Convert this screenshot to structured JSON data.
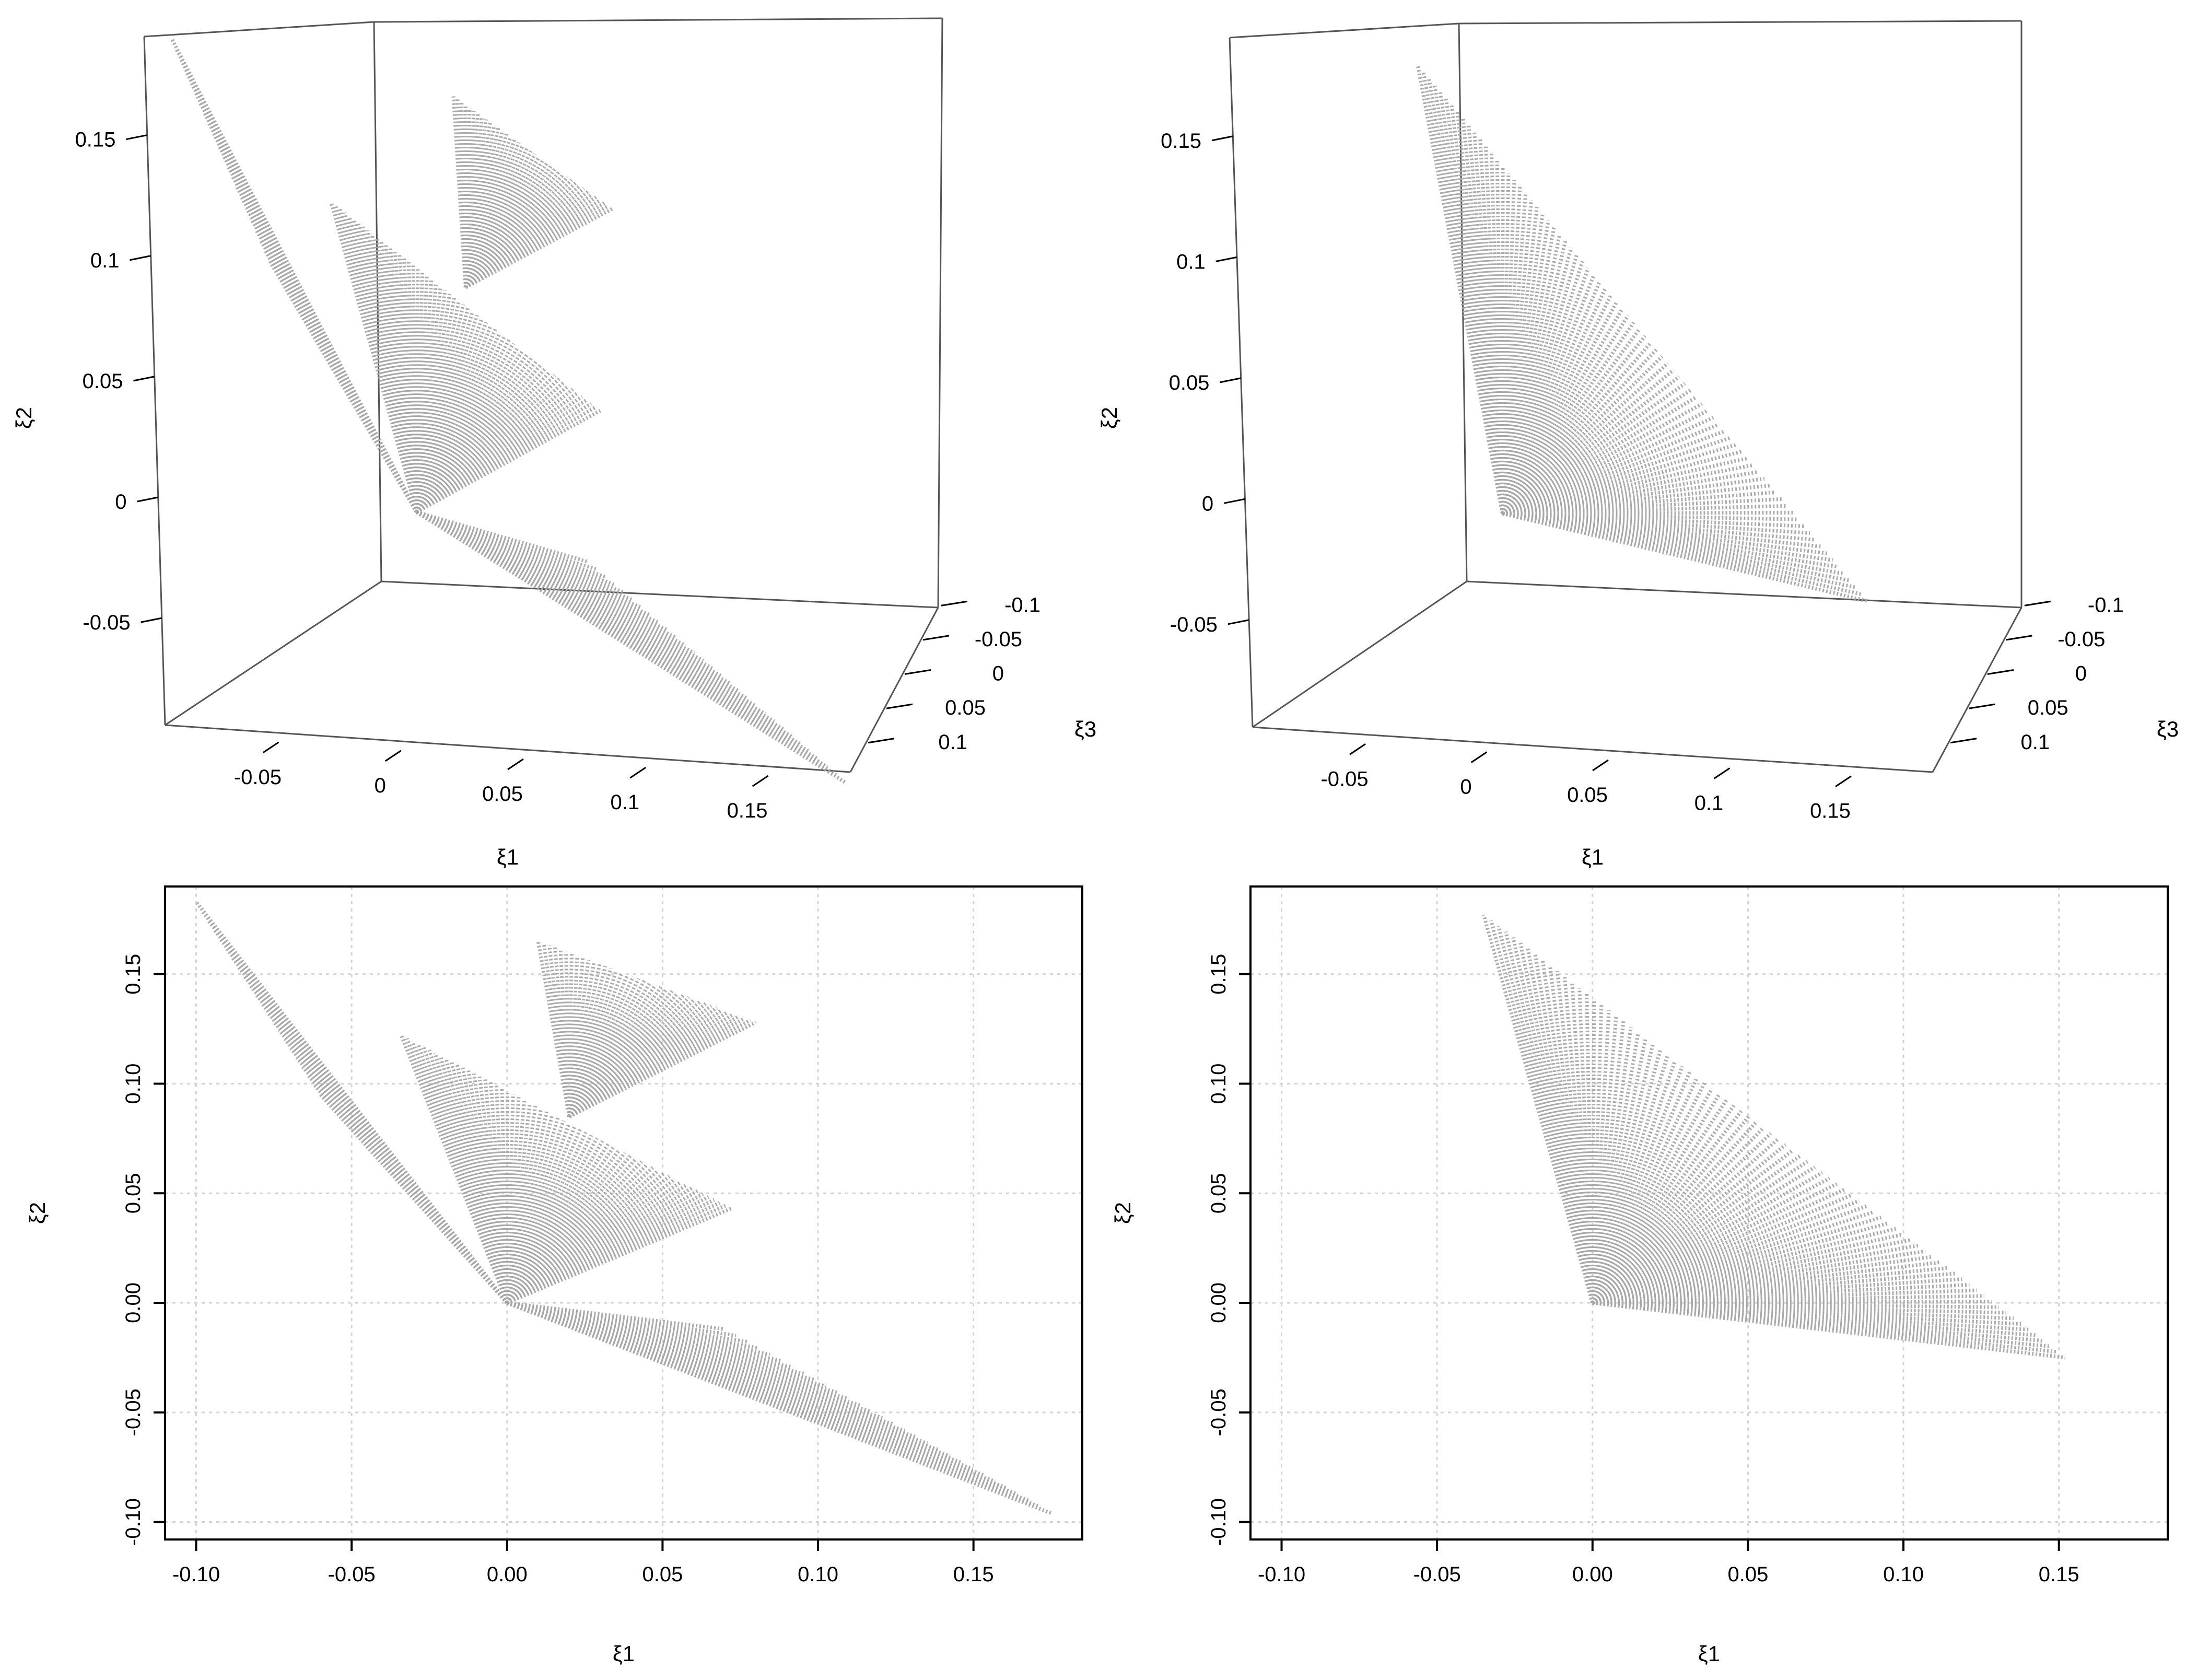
{
  "figure": {
    "background": "#ffffff",
    "fan_color": "#a6a6a6",
    "grid_color": "#d3d3d3",
    "axis_color": "#000000",
    "box_color": "#555555"
  },
  "chart_data": [
    {
      "type": "scatter",
      "panel": "top-left",
      "projection": "3d-perspective",
      "title": "",
      "xlabel": "ξ1",
      "ylabel": "ξ2",
      "zlabel": "ξ3",
      "xlim": [
        -0.09,
        0.19
      ],
      "ylim": [
        -0.09,
        0.18
      ],
      "zlim": [
        -0.12,
        0.12
      ],
      "xticks": [
        -0.05,
        0,
        0.05,
        0.1,
        0.15
      ],
      "xtick_labels": [
        "-0.05",
        "0",
        "0.05",
        "0.1",
        "0.15"
      ],
      "yticks": [
        -0.05,
        0,
        0.05,
        0.1,
        0.15
      ],
      "ytick_labels": [
        "-0.05",
        "0",
        "0.05",
        "0.1",
        "0.15"
      ],
      "zticks": [
        -0.1,
        -0.05,
        0,
        0.05,
        0.1
      ],
      "ztick_labels": [
        "-0.1",
        "-0.05",
        "0",
        "0.05",
        "0.1"
      ],
      "grid": false,
      "color": "#a6a6a6",
      "fans": [
        {
          "name": "",
          "origin": [
            0,
            0
          ],
          "rays": 22,
          "end_x": [
            -0.1,
            -0.06
          ],
          "end_y": [
            0.18,
            0.095
          ]
        },
        {
          "name": "",
          "origin": [
            0,
            0
          ],
          "rays": 60,
          "end_x": [
            -0.035,
            0.075
          ],
          "end_y": [
            0.12,
            0.045
          ]
        },
        {
          "name": "",
          "origin": [
            0.02,
            0.09
          ],
          "rays": 40,
          "end_x": [
            0.015,
            0.08
          ],
          "end_y": [
            0.165,
            0.125
          ]
        },
        {
          "name": "",
          "origin": [
            0,
            0
          ],
          "rays": 30,
          "end_x": [
            0.07,
            0.175
          ],
          "end_y": [
            -0.015,
            -0.095
          ]
        }
      ]
    },
    {
      "type": "scatter",
      "panel": "top-right",
      "projection": "3d-perspective",
      "title": "",
      "xlabel": "ξ1",
      "ylabel": "ξ2",
      "zlabel": "ξ3",
      "xlim": [
        -0.09,
        0.19
      ],
      "ylim": [
        -0.09,
        0.18
      ],
      "zlim": [
        -0.12,
        0.12
      ],
      "xticks": [
        -0.05,
        0,
        0.05,
        0.1,
        0.15
      ],
      "xtick_labels": [
        "-0.05",
        "0",
        "0.05",
        "0.1",
        "0.15"
      ],
      "yticks": [
        -0.05,
        0,
        0.05,
        0.1,
        0.15
      ],
      "ytick_labels": [
        "-0.05",
        "0",
        "0.05",
        "0.1",
        "0.15"
      ],
      "zticks": [
        -0.1,
        -0.05,
        0,
        0.05,
        0.1
      ],
      "ztick_labels": [
        "-0.1",
        "-0.05",
        "0",
        "0.05",
        "0.1"
      ],
      "grid": false,
      "color": "#a6a6a6",
      "fans": [
        {
          "name": "",
          "origin": [
            0,
            0
          ],
          "rays": 80,
          "end_x": [
            -0.035,
            0.15
          ],
          "end_y": [
            0.175,
            -0.025
          ]
        }
      ]
    },
    {
      "type": "scatter",
      "panel": "bottom-left",
      "projection": "2d",
      "title": "",
      "xlabel": "ξ1",
      "ylabel": "ξ2",
      "xlim": [
        -0.11,
        0.185
      ],
      "ylim": [
        -0.108,
        0.19
      ],
      "xticks": [
        -0.1,
        -0.05,
        0,
        0.05,
        0.1,
        0.15
      ],
      "xtick_labels": [
        "-0.10",
        "-0.05",
        "0.00",
        "0.05",
        "0.10",
        "0.15"
      ],
      "yticks": [
        -0.1,
        -0.05,
        0,
        0.05,
        0.1,
        0.15
      ],
      "ytick_labels": [
        "-0.10",
        "-0.05",
        "0.00",
        "0.05",
        "0.10",
        "0.15"
      ],
      "grid": true,
      "color": "#a6a6a6",
      "fans": [
        {
          "name": "",
          "origin": [
            0,
            0
          ],
          "rays": 22,
          "end_x": [
            -0.1,
            -0.06
          ],
          "end_y": [
            0.183,
            0.095
          ]
        },
        {
          "name": "",
          "origin": [
            0,
            0
          ],
          "rays": 60,
          "end_x": [
            -0.034,
            0.072
          ],
          "end_y": [
            0.122,
            0.043
          ]
        },
        {
          "name": "",
          "origin": [
            0.02,
            0.085
          ],
          "rays": 40,
          "end_x": [
            0.01,
            0.08
          ],
          "end_y": [
            0.165,
            0.128
          ]
        },
        {
          "name": "",
          "origin": [
            0,
            0
          ],
          "rays": 30,
          "end_x": [
            0.07,
            0.175
          ],
          "end_y": [
            -0.012,
            -0.096
          ]
        }
      ]
    },
    {
      "type": "scatter",
      "panel": "bottom-right",
      "projection": "2d",
      "title": "",
      "xlabel": "ξ1",
      "ylabel": "ξ2",
      "xlim": [
        -0.11,
        0.185
      ],
      "ylim": [
        -0.108,
        0.19
      ],
      "xticks": [
        -0.1,
        -0.05,
        0,
        0.05,
        0.1,
        0.15
      ],
      "xtick_labels": [
        "-0.10",
        "-0.05",
        "0.00",
        "0.05",
        "0.10",
        "0.15"
      ],
      "yticks": [
        -0.1,
        -0.05,
        0,
        0.05,
        0.1,
        0.15
      ],
      "ytick_labels": [
        "-0.10",
        "-0.05",
        "0.00",
        "0.05",
        "0.10",
        "0.15"
      ],
      "grid": true,
      "color": "#a6a6a6",
      "fans": [
        {
          "name": "",
          "origin": [
            0,
            0
          ],
          "rays": 80,
          "end_x": [
            -0.035,
            0.152
          ],
          "end_y": [
            0.177,
            -0.025
          ]
        }
      ]
    }
  ]
}
